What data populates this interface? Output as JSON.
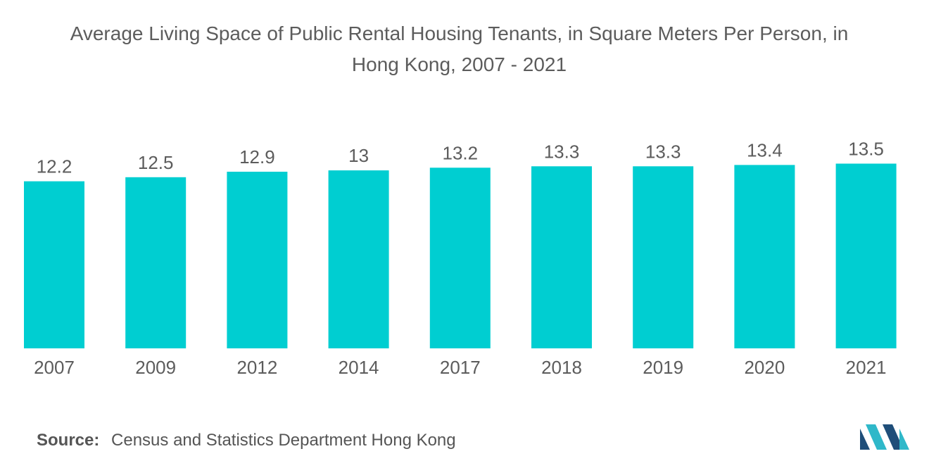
{
  "title_line1": "Average Living Space of Public Rental Housing Tenants, in Square Meters Per Person, in",
  "title_line2": "Hong Kong, 2007 - 2021",
  "source": {
    "label": "Source:",
    "text": "Census and Statistics Department Hong Kong"
  },
  "colors": {
    "bar": "#00CED1",
    "text": "#5c5c5c",
    "logo_dark": "#1f4e79",
    "logo_light": "#2fb8c9"
  },
  "chart_data": {
    "type": "bar",
    "title": "Average Living Space of Public Rental Housing Tenants, in Square Meters Per Person, in Hong Kong, 2007 - 2021",
    "xlabel": "",
    "ylabel": "",
    "categories": [
      "2007",
      "2009",
      "2012",
      "2014",
      "2017",
      "2018",
      "2019",
      "2020",
      "2021"
    ],
    "values": [
      12.2,
      12.5,
      12.9,
      13,
      13.2,
      13.3,
      13.3,
      13.4,
      13.5
    ],
    "value_labels": [
      "12.2",
      "12.5",
      "12.9",
      "13",
      "13.2",
      "13.3",
      "13.3",
      "13.4",
      "13.5"
    ],
    "grid": false,
    "legend": "none",
    "y_axis_visible": false
  }
}
